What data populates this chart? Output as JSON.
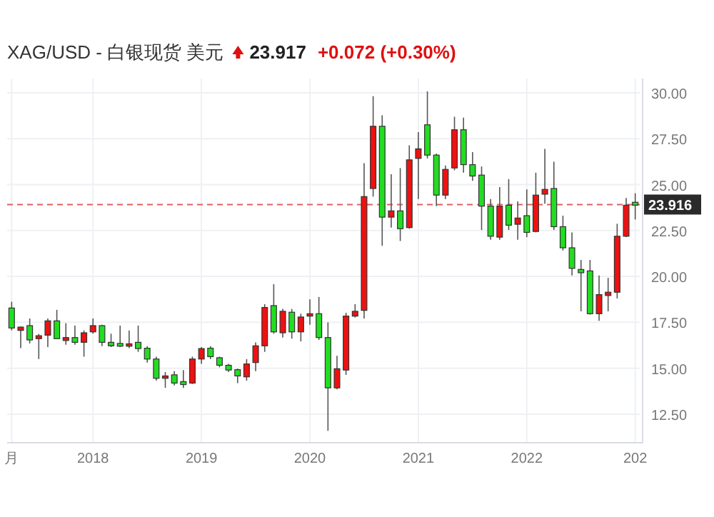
{
  "chart_data": {
    "type": "candlestick",
    "title": "XAG/USD - 白银现货 美元",
    "annotations": [
      "23.917",
      "+0.072 (+0.30%)"
    ],
    "categories": [
      "月",
      null,
      null,
      null,
      null,
      null,
      null,
      null,
      null,
      "2018",
      null,
      null,
      null,
      null,
      null,
      null,
      null,
      null,
      null,
      null,
      null,
      "2019",
      null,
      null,
      null,
      null,
      null,
      null,
      null,
      null,
      null,
      null,
      null,
      "2020",
      null,
      null,
      null,
      null,
      null,
      null,
      null,
      null,
      null,
      null,
      null,
      "2021",
      null,
      null,
      null,
      null,
      null,
      null,
      null,
      null,
      null,
      null,
      null,
      "2022",
      null,
      null,
      null,
      null,
      null,
      null,
      null,
      null,
      null,
      null,
      null,
      "202"
    ],
    "ohlc": [
      [
        18.28,
        18.62,
        17.06,
        17.19
      ],
      [
        17.06,
        17.27,
        16.09,
        17.24
      ],
      [
        17.32,
        17.71,
        16.35,
        16.54
      ],
      [
        16.61,
        16.87,
        15.5,
        16.77
      ],
      [
        16.8,
        17.71,
        16.15,
        17.58
      ],
      [
        17.58,
        18.18,
        16.61,
        16.61
      ],
      [
        16.51,
        17.45,
        16.28,
        16.67
      ],
      [
        16.67,
        17.32,
        16.28,
        16.41
      ],
      [
        16.41,
        17.06,
        15.63,
        16.93
      ],
      [
        16.98,
        17.71,
        16.88,
        17.32
      ],
      [
        17.32,
        17.37,
        16.2,
        16.41
      ],
      [
        16.41,
        16.88,
        16.15,
        16.22
      ],
      [
        16.35,
        17.32,
        16.15,
        16.2
      ],
      [
        16.2,
        17.06,
        16.09,
        16.33
      ],
      [
        16.41,
        17.32,
        15.89,
        16.07
      ],
      [
        16.09,
        16.2,
        15.31,
        15.5
      ],
      [
        15.5,
        15.63,
        14.32,
        14.45
      ],
      [
        14.45,
        14.79,
        13.93,
        14.58
      ],
      [
        14.64,
        14.84,
        14.06,
        14.19
      ],
      [
        14.27,
        14.9,
        13.93,
        14.11
      ],
      [
        14.19,
        15.63,
        14.14,
        15.5
      ],
      [
        15.5,
        16.15,
        15.24,
        16.07
      ],
      [
        16.09,
        16.2,
        15.5,
        15.63
      ],
      [
        15.57,
        15.63,
        15.05,
        15.16
      ],
      [
        15.16,
        15.24,
        14.79,
        14.9
      ],
      [
        14.92,
        14.98,
        14.19,
        14.58
      ],
      [
        14.53,
        15.49,
        14.32,
        15.23
      ],
      [
        15.31,
        16.41,
        14.84,
        16.22
      ],
      [
        16.22,
        18.49,
        15.89,
        18.31
      ],
      [
        18.41,
        19.58,
        16.88,
        16.98
      ],
      [
        16.93,
        18.23,
        16.67,
        18.1
      ],
      [
        18.05,
        18.23,
        16.61,
        16.98
      ],
      [
        16.98,
        17.97,
        16.46,
        17.79
      ],
      [
        17.84,
        18.75,
        17.37,
        17.97
      ],
      [
        17.97,
        18.88,
        16.54,
        16.67
      ],
      [
        16.67,
        17.5,
        11.59,
        13.93
      ],
      [
        13.93,
        15.68,
        13.85,
        14.97
      ],
      [
        14.9,
        18.02,
        14.64,
        17.84
      ],
      [
        17.84,
        18.49,
        17.76,
        18.1
      ],
      [
        18.15,
        26.17,
        17.71,
        24.35
      ],
      [
        24.79,
        29.82,
        24.35,
        28.18
      ],
      [
        28.18,
        28.78,
        21.67,
        23.23
      ],
      [
        23.23,
        25.57,
        22.66,
        23.57
      ],
      [
        23.57,
        25.9,
        21.93,
        22.6
      ],
      [
        22.66,
        27.14,
        22.6,
        26.35
      ],
      [
        26.43,
        27.86,
        24.22,
        26.95
      ],
      [
        28.26,
        30.08,
        26.43,
        26.61
      ],
      [
        26.61,
        26.69,
        23.83,
        24.43
      ],
      [
        24.43,
        26.04,
        24.22,
        25.83
      ],
      [
        25.91,
        28.7,
        25.78,
        27.99
      ],
      [
        27.99,
        28.65,
        25.65,
        26.09
      ],
      [
        26.09,
        26.77,
        25.21,
        25.47
      ],
      [
        25.52,
        25.99,
        22.53,
        23.83
      ],
      [
        23.83,
        24.22,
        22.0,
        22.19
      ],
      [
        22.14,
        24.87,
        22.0,
        23.83
      ],
      [
        23.88,
        25.3,
        22.53,
        22.79
      ],
      [
        22.84,
        24.09,
        22.0,
        23.18
      ],
      [
        23.31,
        24.74,
        22.14,
        22.4
      ],
      [
        22.45,
        25.65,
        22.4,
        24.43
      ],
      [
        24.48,
        26.95,
        23.96,
        24.74
      ],
      [
        24.79,
        26.25,
        22.53,
        22.71
      ],
      [
        22.71,
        23.31,
        21.41,
        21.56
      ],
      [
        21.56,
        22.4,
        20.05,
        20.44
      ],
      [
        20.38,
        20.9,
        18.1,
        20.2
      ],
      [
        20.3,
        20.9,
        17.92,
        17.97
      ],
      [
        17.97,
        20.05,
        17.58,
        19.01
      ],
      [
        18.96,
        19.92,
        18.1,
        19.14
      ],
      [
        19.14,
        22.87,
        18.8,
        22.19
      ],
      [
        22.19,
        24.27,
        22.14,
        23.88
      ],
      [
        24.04,
        24.53,
        23.1,
        23.88
      ]
    ],
    "colors": [
      "#22dd22",
      "#ee1111",
      "#22dd22",
      "#ee1111",
      "#ee1111",
      "#22dd22",
      "#ee1111",
      "#22dd22",
      "#ee1111",
      "#ee1111",
      "#22dd22",
      "#22dd22",
      "#22dd22",
      "#ee1111",
      "#22dd22",
      "#22dd22",
      "#22dd22",
      "#ee1111",
      "#22dd22",
      "#22dd22",
      "#ee1111",
      "#ee1111",
      "#22dd22",
      "#22dd22",
      "#22dd22",
      "#22dd22",
      "#ee1111",
      "#ee1111",
      "#ee1111",
      "#22dd22",
      "#ee1111",
      "#22dd22",
      "#ee1111",
      "#ee1111",
      "#22dd22",
      "#22dd22",
      "#ee1111",
      "#ee1111",
      "#ee1111",
      "#ee1111",
      "#ee1111",
      "#22dd22",
      "#ee1111",
      "#22dd22",
      "#ee1111",
      "#ee1111",
      "#22dd22",
      "#22dd22",
      "#ee1111",
      "#ee1111",
      "#22dd22",
      "#22dd22",
      "#22dd22",
      "#22dd22",
      "#ee1111",
      "#22dd22",
      "#ee1111",
      "#22dd22",
      "#ee1111",
      "#ee1111",
      "#22dd22",
      "#22dd22",
      "#22dd22",
      "#22dd22",
      "#22dd22",
      "#ee1111",
      "#ee1111",
      "#ee1111",
      "#ee1111",
      "#22dd22"
    ],
    "ylim": [
      10.94,
      30.78
    ],
    "yticks": [
      {
        "value": 12.5,
        "label": "12.50"
      },
      {
        "value": 15,
        "label": "15.00"
      },
      {
        "value": 17.5,
        "label": "17.50"
      },
      {
        "value": 20,
        "label": "20.00"
      },
      {
        "value": 22.5,
        "label": "22.50"
      },
      {
        "value": 25,
        "label": "25.00"
      },
      {
        "value": 27.5,
        "label": "27.50"
      },
      {
        "value": 30,
        "label": "30.00"
      }
    ],
    "ref_lines": [
      {
        "axis": "y",
        "value": 23.916,
        "label": "23.916",
        "color": "#e06060",
        "line_style": "dashed"
      }
    ],
    "grid": true
  }
}
